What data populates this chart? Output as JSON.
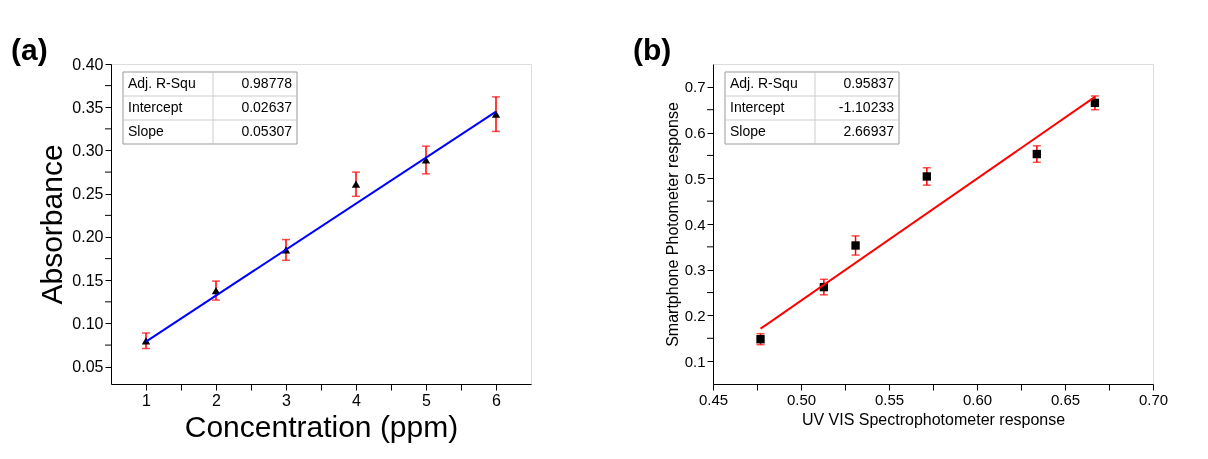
{
  "chart_data": [
    {
      "type": "scatter",
      "xlabel": "Concentration (ppm)",
      "ylabel": "Absorbance",
      "marker": "triangle",
      "grid": false,
      "annotations": [
        "(a)",
        "Adj. R-Squ",
        "0.98778",
        "Intercept",
        "0.02637",
        "Slope",
        "0.05307"
      ],
      "x": [
        1,
        2,
        3,
        4,
        5,
        6
      ],
      "series": [
        {
          "color": "#000000",
          "values": [
            0.08,
            0.138,
            0.185,
            0.261,
            0.289,
            0.342
          ],
          "errors": [
            0.009,
            0.011,
            0.012,
            0.014,
            0.016,
            0.02
          ]
        },
        {
          "type": "line",
          "color": "#0000ff",
          "line_style": "solid",
          "marker": "none",
          "x": [
            1,
            6
          ],
          "values": [
            0.079,
            0.345
          ]
        }
      ],
      "xlim": [
        0.5,
        6.5
      ],
      "xticks": [
        1,
        {
          "value": 1.5,
          "label": null
        },
        2,
        {
          "value": 2.5,
          "label": null
        },
        3,
        {
          "value": 3.5,
          "label": null
        },
        4,
        {
          "value": 4.5,
          "label": null
        },
        5,
        {
          "value": 5.5,
          "label": null
        },
        6
      ],
      "ylim": [
        0.03,
        0.4
      ],
      "yticks": [
        0.05,
        {
          "value": 0.075,
          "label": null
        },
        {
          "value": 0.1,
          "label": "0.10"
        },
        {
          "value": 0.125,
          "label": null
        },
        0.15,
        {
          "value": 0.175,
          "label": null
        },
        {
          "value": 0.2,
          "label": "0.20"
        },
        {
          "value": 0.225,
          "label": null
        },
        0.25,
        {
          "value": 0.275,
          "label": null
        },
        {
          "value": 0.3,
          "label": "0.30"
        },
        {
          "value": 0.325,
          "label": null
        },
        0.35,
        {
          "value": 0.375,
          "label": null
        },
        {
          "value": 0.4,
          "label": "0.40"
        }
      ]
    },
    {
      "type": "scatter",
      "xlabel": "UV VIS Spectrophotometer response",
      "ylabel": "Smartphone Photometer response",
      "marker": "square",
      "grid": false,
      "annotations": [
        "(b)",
        "Adj. R-Squ",
        "0.95837",
        "Intercept",
        "-1.10233",
        "Slope",
        "2.66937"
      ],
      "x": [
        0.477,
        0.513,
        0.531,
        0.5715,
        0.634,
        0.667
      ],
      "series": [
        {
          "color": "#000000",
          "values": [
            0.148,
            0.262,
            0.353,
            0.504,
            0.553,
            0.665
          ],
          "errors": [
            0.012,
            0.017,
            0.021,
            0.019,
            0.018,
            0.015
          ]
        },
        {
          "type": "line",
          "color": "#ff0000",
          "line_style": "solid",
          "marker": "none",
          "x": [
            0.477,
            0.667
          ],
          "values": [
            0.171,
            0.678
          ]
        }
      ],
      "xlim": [
        0.45,
        0.7
      ],
      "xticks": [
        0.45,
        {
          "value": 0.475,
          "label": null
        },
        {
          "value": 0.5,
          "label": "0.50"
        },
        {
          "value": 0.525,
          "label": null
        },
        0.55,
        {
          "value": 0.575,
          "label": null
        },
        {
          "value": 0.6,
          "label": "0.60"
        },
        {
          "value": 0.625,
          "label": null
        },
        0.65,
        {
          "value": 0.675,
          "label": null
        },
        {
          "value": 0.7,
          "label": "0.70"
        }
      ],
      "ylim": [
        0.05,
        0.75
      ],
      "yticks": [
        0.1,
        {
          "value": 0.15,
          "label": null
        },
        0.2,
        {
          "value": 0.25,
          "label": null
        },
        0.3,
        {
          "value": 0.35,
          "label": null
        },
        0.4,
        {
          "value": 0.45,
          "label": null
        },
        0.5,
        {
          "value": 0.55,
          "label": null
        },
        0.6,
        {
          "value": 0.65,
          "label": null
        },
        0.7
      ]
    }
  ]
}
